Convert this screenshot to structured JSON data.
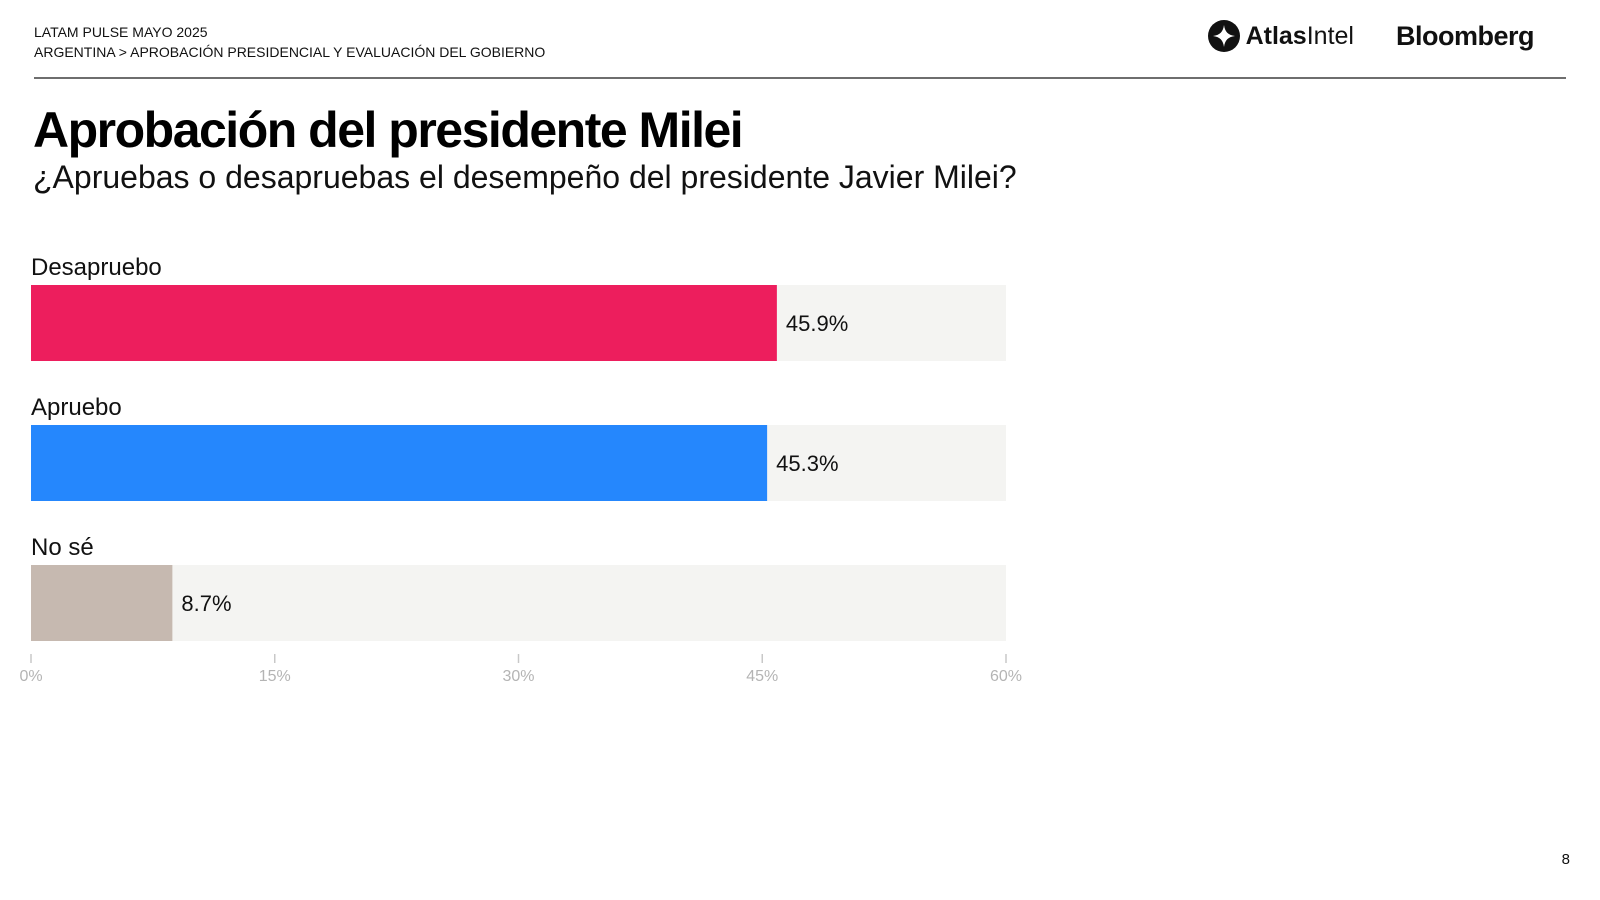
{
  "header": {
    "survey": "LATAM PULSE MAYO 2025",
    "breadcrumb_country": "ARGENTINA",
    "breadcrumb_separator": ">",
    "breadcrumb_section": "APROBACIÓN PRESIDENCIAL Y EVALUACIÓN DEL GOBIERNO"
  },
  "logos": {
    "atlas_bold": "Atlas",
    "atlas_light": "Intel",
    "bloomberg": "Bloomberg"
  },
  "page_number": "8",
  "chart_data": {
    "type": "bar",
    "orientation": "horizontal",
    "title": "Aprobación del presidente Milei",
    "subtitle": "¿Apruebas o desapruebas el desempeño del presidente Javier Milei?",
    "categories": [
      "Desapruebo",
      "Apruebo",
      "No sé"
    ],
    "values": [
      45.9,
      45.3,
      8.7
    ],
    "data_labels": [
      "45.9%",
      "45.3%",
      "8.7%"
    ],
    "colors": [
      "#ed1e5d",
      "#2587fd",
      "#c6b9b0"
    ],
    "track_color": "#f4f4f2",
    "xlim": [
      0,
      60
    ],
    "xticks": [
      0,
      15,
      30,
      45,
      60
    ],
    "xtick_labels": [
      "0%",
      "15%",
      "30%",
      "45%",
      "60%"
    ],
    "grid": false,
    "legend": "none"
  }
}
